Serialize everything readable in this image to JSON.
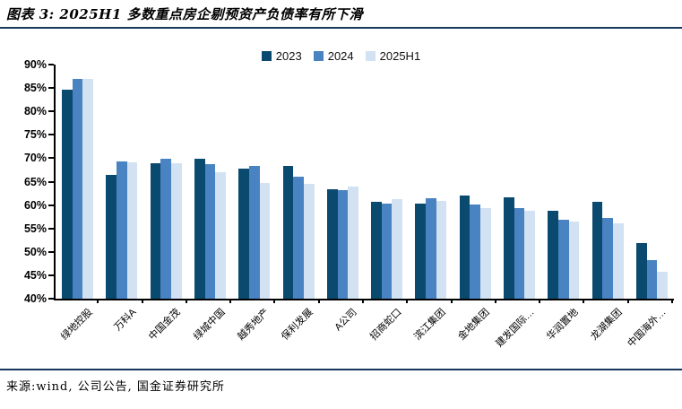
{
  "header": {
    "title": "图表 3: 2025H1 多数重点房企剔预资产负债率有所下滑"
  },
  "footer": {
    "source": "来源:wind, 公司公告, 国金证券研究所"
  },
  "colors": {
    "divider_navy": "#17375e",
    "axis_black": "#000000",
    "series_2023": "#0b4a6f",
    "series_2024": "#4983c2",
    "series_2025H1": "#d3e2f2"
  },
  "chart_data": {
    "type": "bar",
    "title": "图表 3: 2025H1 多数重点房企剔预资产负债率有所下滑",
    "xlabel": "",
    "ylabel": "",
    "ylim": [
      40,
      90
    ],
    "ytick_step": 5,
    "ytick_suffix": "%",
    "grid": false,
    "legend_position": "top-center",
    "categories": [
      "绿地控股",
      "万科A",
      "中国金茂",
      "绿城中国",
      "越秀地产",
      "保利发展",
      "A公司",
      "招商蛇口",
      "滨江集团",
      "金地集团",
      "建发国际…",
      "华润置地",
      "龙湖集团",
      "中国海外…"
    ],
    "series": [
      {
        "name": "2023",
        "color": "#0b4a6f",
        "values": [
          84.7,
          66.5,
          69.0,
          69.9,
          67.8,
          68.3,
          63.4,
          60.6,
          60.4,
          62.0,
          61.6,
          58.8,
          60.6,
          51.9
        ]
      },
      {
        "name": "2024",
        "color": "#4983c2",
        "values": [
          87.0,
          69.4,
          69.8,
          68.7,
          68.4,
          66.0,
          63.1,
          60.3,
          61.5,
          60.2,
          59.4,
          56.8,
          57.2,
          48.3
        ]
      },
      {
        "name": "2025H1",
        "color": "#d3e2f2",
        "values": [
          87.0,
          69.2,
          68.9,
          67.1,
          64.7,
          64.6,
          63.9,
          61.2,
          60.9,
          59.3,
          58.8,
          56.4,
          56.1,
          45.8
        ]
      }
    ]
  }
}
